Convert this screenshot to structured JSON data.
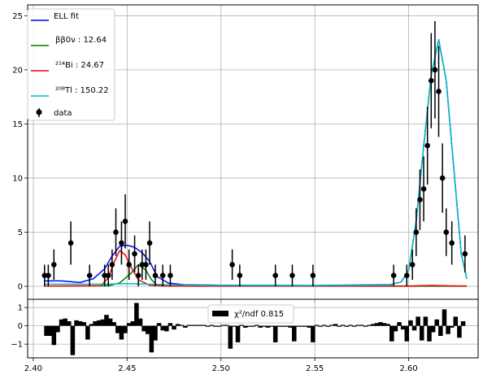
{
  "chart_data": [
    {
      "type": "line",
      "panel": "main",
      "xlabel": "",
      "ylabel": "",
      "xlim": [
        2.397,
        2.637
      ],
      "ylim": [
        -1.2,
        26
      ],
      "grid": true,
      "legend_placement": "top-left",
      "x_ticks": [
        2.4,
        2.45,
        2.5,
        2.55,
        2.6
      ],
      "y_ticks": [
        0,
        5,
        10,
        15,
        20,
        25
      ],
      "series": [
        {
          "name": "ELL fit",
          "color": "#0000ff",
          "x": [
            2.406,
            2.415,
            2.425,
            2.432,
            2.438,
            2.442,
            2.446,
            2.45,
            2.454,
            2.458,
            2.462,
            2.466,
            2.472,
            2.48,
            2.5,
            2.55,
            2.59,
            2.596,
            2.6,
            2.604,
            2.608,
            2.612,
            2.616,
            2.62,
            2.624,
            2.628,
            2.631
          ],
          "y": [
            0.5,
            0.5,
            0.35,
            0.7,
            1.6,
            2.8,
            3.7,
            3.8,
            3.6,
            3.1,
            2.3,
            0.9,
            0.3,
            0.15,
            0.1,
            0.08,
            0.15,
            0.4,
            1.5,
            6,
            13,
            19.5,
            22.8,
            19,
            11,
            3,
            0.7
          ]
        },
        {
          "name": "ββ0ν :  12.64",
          "color": "#008000",
          "x": [
            2.406,
            2.44,
            2.446,
            2.452,
            2.456,
            2.46,
            2.463,
            2.466,
            2.47,
            2.48,
            2.5,
            2.55,
            2.6,
            2.631
          ],
          "y": [
            0.02,
            0.05,
            0.3,
            1.2,
            2.0,
            1.5,
            0.6,
            0.1,
            0.03,
            0.02,
            0.01,
            0.01,
            0.01,
            0.01
          ]
        },
        {
          "name": "²¹⁴Bi :  24.67",
          "color": "#ff0000",
          "x": [
            2.406,
            2.436,
            2.44,
            2.443,
            2.446,
            2.449,
            2.452,
            2.456,
            2.462,
            2.47,
            2.5,
            2.55,
            2.6,
            2.612,
            2.62,
            2.631
          ],
          "y": [
            0.02,
            0.05,
            0.8,
            2.2,
            3.3,
            2.9,
            1.8,
            0.6,
            0.1,
            0.03,
            0.02,
            0.02,
            0.03,
            0.08,
            0.05,
            0.03
          ]
        },
        {
          "name": "²⁰⁸Tl : 150.22",
          "color": "#00bfbf",
          "x": [
            2.406,
            2.44,
            2.45,
            2.46,
            2.48,
            2.5,
            2.55,
            2.59,
            2.596,
            2.6,
            2.604,
            2.608,
            2.612,
            2.616,
            2.62,
            2.624,
            2.628,
            2.631
          ],
          "y": [
            0.2,
            0.2,
            0.25,
            0.2,
            0.12,
            0.08,
            0.06,
            0.12,
            0.4,
            1.5,
            6,
            13,
            19.5,
            22.8,
            19,
            11,
            3,
            0.7
          ]
        }
      ],
      "data_points": {
        "name": "data",
        "color": "#000000",
        "points": [
          {
            "x": 2.406,
            "y": 1,
            "err": 1
          },
          {
            "x": 2.408,
            "y": 1,
            "err": 1
          },
          {
            "x": 2.411,
            "y": 2,
            "err": 1.4
          },
          {
            "x": 2.42,
            "y": 4,
            "err": 2
          },
          {
            "x": 2.43,
            "y": 1,
            "err": 1
          },
          {
            "x": 2.438,
            "y": 1,
            "err": 1
          },
          {
            "x": 2.44,
            "y": 1,
            "err": 1
          },
          {
            "x": 2.442,
            "y": 2,
            "err": 1.4
          },
          {
            "x": 2.444,
            "y": 5,
            "err": 2.2
          },
          {
            "x": 2.447,
            "y": 4,
            "err": 2
          },
          {
            "x": 2.449,
            "y": 6,
            "err": 2.5
          },
          {
            "x": 2.451,
            "y": 2,
            "err": 1.4
          },
          {
            "x": 2.454,
            "y": 3,
            "err": 1.7
          },
          {
            "x": 2.456,
            "y": 1,
            "err": 1
          },
          {
            "x": 2.458,
            "y": 2,
            "err": 1.4
          },
          {
            "x": 2.46,
            "y": 2,
            "err": 1.4
          },
          {
            "x": 2.462,
            "y": 4,
            "err": 2
          },
          {
            "x": 2.465,
            "y": 1,
            "err": 1
          },
          {
            "x": 2.469,
            "y": 1,
            "err": 1
          },
          {
            "x": 2.473,
            "y": 1,
            "err": 1
          },
          {
            "x": 2.506,
            "y": 2,
            "err": 1.4
          },
          {
            "x": 2.51,
            "y": 1,
            "err": 1
          },
          {
            "x": 2.529,
            "y": 1,
            "err": 1
          },
          {
            "x": 2.538,
            "y": 1,
            "err": 1
          },
          {
            "x": 2.549,
            "y": 1,
            "err": 1
          },
          {
            "x": 2.592,
            "y": 1,
            "err": 1
          },
          {
            "x": 2.599,
            "y": 1,
            "err": 1
          },
          {
            "x": 2.602,
            "y": 2,
            "err": 1.4
          },
          {
            "x": 2.604,
            "y": 5,
            "err": 2.2
          },
          {
            "x": 2.606,
            "y": 8,
            "err": 2.8
          },
          {
            "x": 2.608,
            "y": 9,
            "err": 3
          },
          {
            "x": 2.61,
            "y": 13,
            "err": 3.6
          },
          {
            "x": 2.612,
            "y": 19,
            "err": 4.4
          },
          {
            "x": 2.614,
            "y": 20,
            "err": 4.5
          },
          {
            "x": 2.616,
            "y": 18,
            "err": 4.2
          },
          {
            "x": 2.618,
            "y": 10,
            "err": 3.2
          },
          {
            "x": 2.62,
            "y": 5,
            "err": 2.2
          },
          {
            "x": 2.623,
            "y": 4,
            "err": 2
          },
          {
            "x": 2.63,
            "y": 3,
            "err": 1.7
          }
        ]
      }
    },
    {
      "type": "bar",
      "panel": "residuals",
      "xlabel": "",
      "ylabel": "",
      "xlim": [
        2.397,
        2.637
      ],
      "ylim": [
        -1.75,
        1.45
      ],
      "grid": true,
      "x_ticks": [
        2.4,
        2.45,
        2.5,
        2.55,
        2.6
      ],
      "x_tick_labels": [
        "2.40",
        "2.45",
        "2.50",
        "2.55",
        "2.60"
      ],
      "y_ticks": [
        -1,
        0,
        1
      ],
      "legend_label": "χ²/ndf  0.815",
      "legend_placement": "top-center",
      "bar_width": 0.0024,
      "x": [
        2.407,
        2.409,
        2.411,
        2.413,
        2.415,
        2.417,
        2.419,
        2.421,
        2.423,
        2.425,
        2.427,
        2.429,
        2.431,
        2.433,
        2.435,
        2.437,
        2.439,
        2.441,
        2.443,
        2.445,
        2.447,
        2.449,
        2.451,
        2.453,
        2.455,
        2.457,
        2.459,
        2.461,
        2.463,
        2.465,
        2.467,
        2.469,
        2.471,
        2.473,
        2.475,
        2.477,
        2.479,
        2.481,
        2.483,
        2.485,
        2.487,
        2.489,
        2.491,
        2.493,
        2.495,
        2.497,
        2.499,
        2.501,
        2.503,
        2.505,
        2.507,
        2.509,
        2.511,
        2.513,
        2.515,
        2.517,
        2.519,
        2.521,
        2.523,
        2.525,
        2.527,
        2.529,
        2.531,
        2.533,
        2.535,
        2.537,
        2.539,
        2.541,
        2.543,
        2.545,
        2.547,
        2.549,
        2.551,
        2.553,
        2.555,
        2.557,
        2.559,
        2.561,
        2.563,
        2.565,
        2.567,
        2.569,
        2.571,
        2.573,
        2.575,
        2.577,
        2.579,
        2.581,
        2.583,
        2.585,
        2.587,
        2.589,
        2.591,
        2.593,
        2.595,
        2.597,
        2.599,
        2.601,
        2.603,
        2.605,
        2.607,
        2.609,
        2.611,
        2.613,
        2.615,
        2.617,
        2.619,
        2.621,
        2.623,
        2.625,
        2.627,
        2.629
      ],
      "values": [
        -0.55,
        -0.55,
        -1.05,
        -0.35,
        0.35,
        0.4,
        0.25,
        -1.6,
        0.3,
        0.25,
        0.2,
        -0.75,
        0.1,
        0.25,
        0.3,
        0.35,
        0.6,
        0.4,
        0.2,
        -0.4,
        -0.75,
        -0.4,
        0.15,
        0.25,
        1.25,
        0.4,
        -0.3,
        -0.45,
        -1.45,
        -0.8,
        0.15,
        -0.25,
        -0.3,
        0.15,
        -0.2,
        0.1,
        0.05,
        -0.1,
        0.05,
        0.05,
        0.05,
        0.05,
        0.05,
        -0.05,
        0.05,
        -0.05,
        -0.05,
        0.05,
        0.05,
        -1.25,
        -0.05,
        -0.9,
        0.05,
        -0.1,
        -0.05,
        -0.05,
        0.05,
        -0.1,
        -0.05,
        -0.1,
        -0.05,
        -0.9,
        -0.05,
        -0.05,
        -0.05,
        -0.1,
        -0.85,
        -0.05,
        -0.05,
        -0.05,
        -0.1,
        -0.9,
        0.05,
        -0.05,
        0.05,
        -0.05,
        0.05,
        0.1,
        -0.05,
        0.05,
        -0.05,
        0.05,
        -0.05,
        0.05,
        0.05,
        -0.05,
        0.05,
        0.1,
        0.15,
        0.2,
        0.15,
        0.1,
        -0.85,
        -0.3,
        0.2,
        -0.2,
        -0.85,
        0.3,
        -0.25,
        0.5,
        -0.8,
        0.5,
        -0.85,
        -0.35,
        0.35,
        -0.55,
        0.9,
        -0.45,
        -0.1,
        0.5,
        -0.65,
        0.25
      ]
    }
  ]
}
